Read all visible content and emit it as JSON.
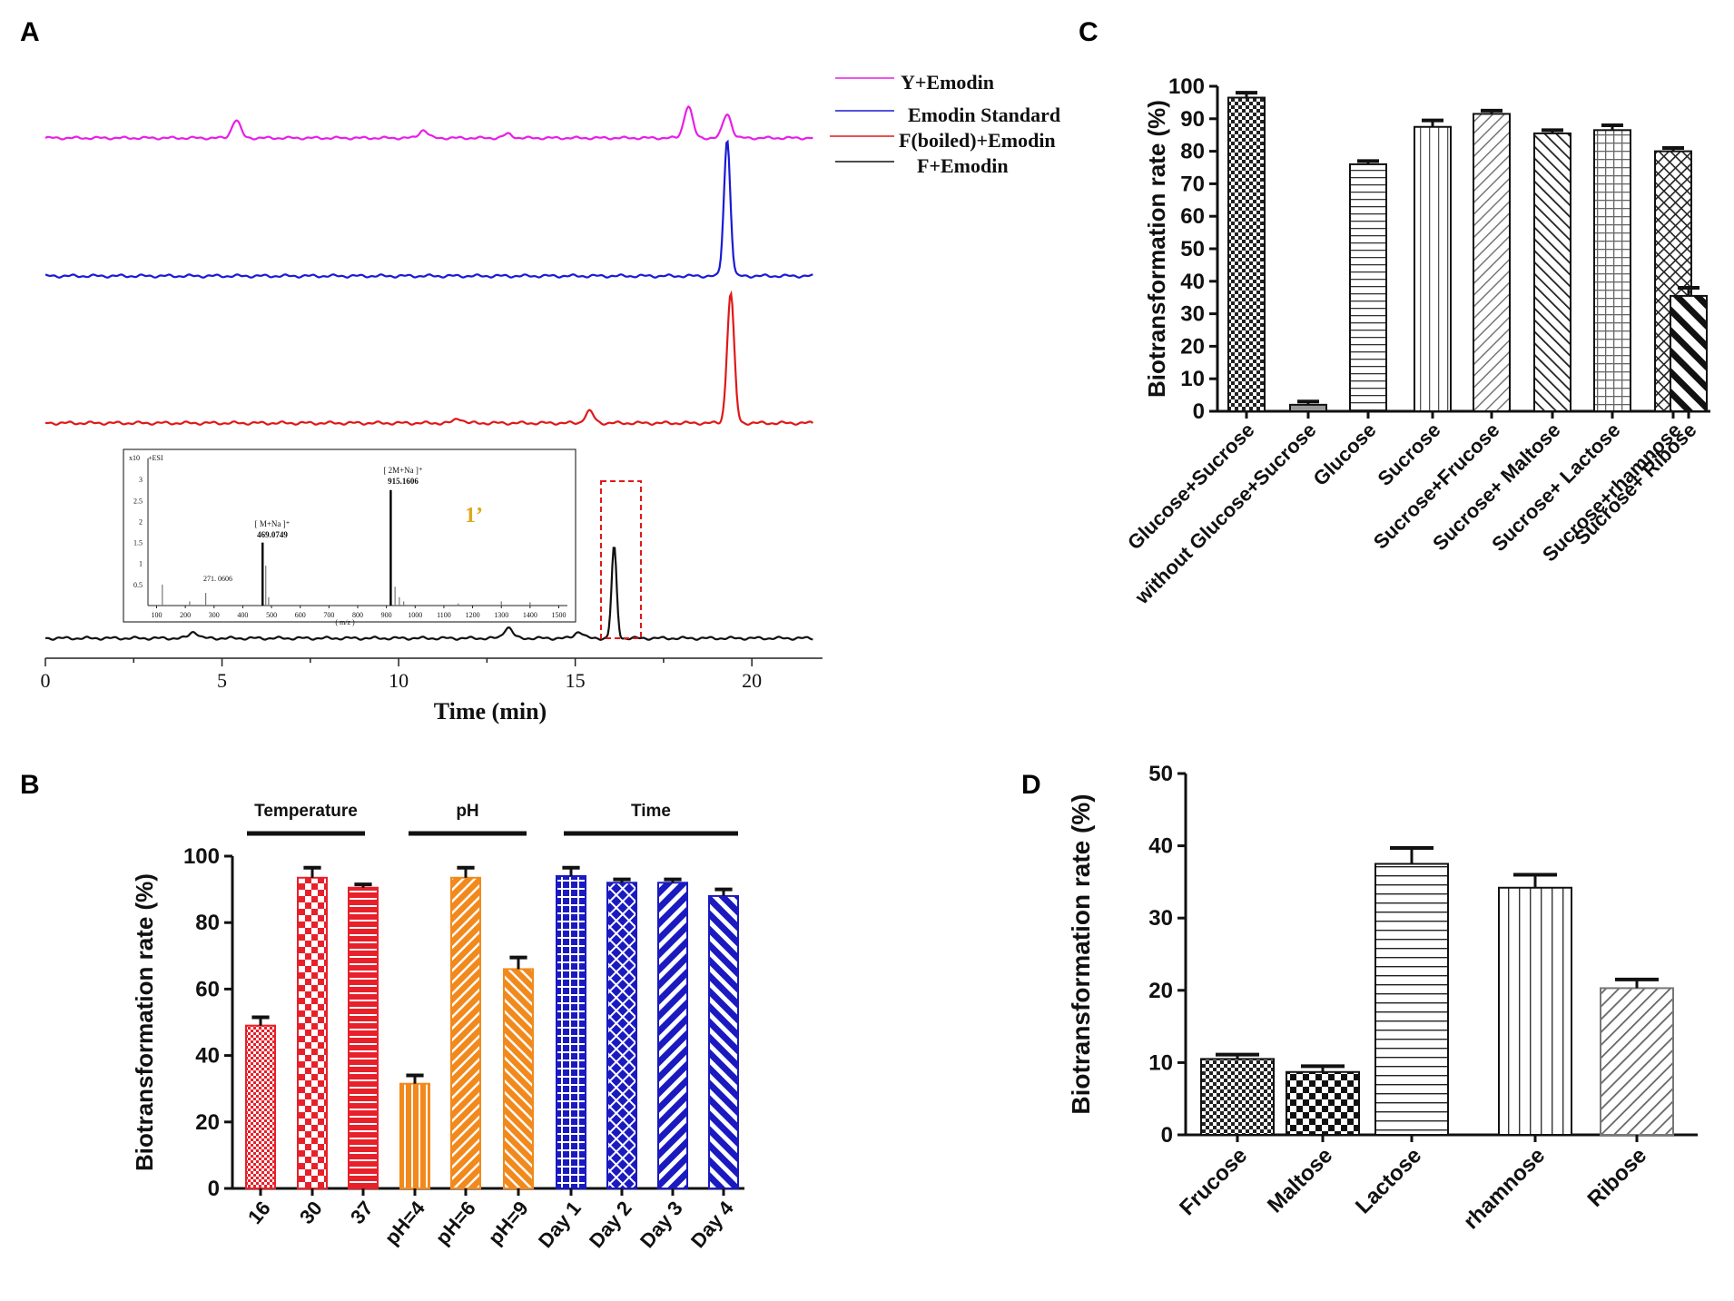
{
  "panels": {
    "A": "A",
    "B": "B",
    "C": "C",
    "D": "D"
  },
  "chart_data": [
    {
      "id": "A",
      "type": "line",
      "xlabel": "Time (min)",
      "xlim": [
        0,
        22
      ],
      "xticks": [
        0,
        5,
        10,
        15,
        20
      ],
      "legend": [
        "Y+Emodin",
        "Emodin Standard",
        "F(boiled)+Emodin",
        "F+Emodin"
      ],
      "colors": {
        "Y+Emodin": "#e81ee8",
        "Emodin Standard": "#1a1ad6",
        "F(boiled)+Emodin": "#e01818",
        "F+Emodin": "#111111"
      },
      "series": [
        {
          "name": "Y+Emodin",
          "peaks": [
            [
              5.4,
              0.9
            ],
            [
              10.7,
              0.4
            ],
            [
              13.1,
              0.2
            ],
            [
              18.2,
              1.6
            ],
            [
              19.3,
              1.2
            ]
          ]
        },
        {
          "name": "Emodin Standard",
          "peaks": [
            [
              19.3,
              6.0
            ]
          ]
        },
        {
          "name": "F(boiled)+Emodin",
          "peaks": [
            [
              11.7,
              0.2
            ],
            [
              15.4,
              0.5
            ],
            [
              19.4,
              5.5
            ]
          ]
        },
        {
          "name": "F+Emodin",
          "peaks": [
            [
              4.2,
              0.3
            ],
            [
              13.1,
              0.5
            ],
            [
              15.1,
              0.3
            ],
            [
              16.1,
              4.2
            ]
          ]
        }
      ],
      "inset": {
        "type": "bar",
        "label": "1’",
        "ylabel": "x10",
        "mode": "+ESI",
        "xlabel": "( m/z )",
        "xticks": [
          100,
          200,
          300,
          400,
          500,
          600,
          700,
          800,
          900,
          1000,
          1100,
          1200,
          1300,
          1400,
          1500
        ],
        "yticks": [
          0.5,
          1,
          1.5,
          2,
          2.5,
          3
        ],
        "annotations": [
          {
            "mz": 271.0606,
            "text": "271. 0606"
          },
          {
            "mz": 469.0749,
            "text": "[ M+Na ]⁺",
            "value": "469.0749"
          },
          {
            "mz": 915.1606,
            "text": "[ 2M+Na ]⁺",
            "value": "915.1606"
          }
        ],
        "peaks": [
          [
            120,
            0.5
          ],
          [
            215,
            0.1
          ],
          [
            271,
            0.3
          ],
          [
            469,
            1.5
          ],
          [
            480,
            0.95
          ],
          [
            490,
            0.2
          ],
          [
            915,
            2.75
          ],
          [
            930,
            0.45
          ],
          [
            945,
            0.2
          ],
          [
            960,
            0.1
          ],
          [
            1150,
            0.05
          ],
          [
            1300,
            0.1
          ],
          [
            1400,
            0.08
          ]
        ]
      }
    },
    {
      "id": "B",
      "type": "bar",
      "ylabel": "Biotransformation rate (%)",
      "ylim": [
        0,
        100
      ],
      "yticks": [
        0,
        20,
        40,
        60,
        80,
        100
      ],
      "groups": [
        "Temperature",
        "pH",
        "Time"
      ],
      "categories": [
        "16",
        "30",
        "37",
        "pH=4",
        "pH=6",
        "pH=9",
        "Day 1",
        "Day 2",
        "Day 3",
        "Day 4"
      ],
      "values": [
        49,
        93.5,
        90.5,
        31.5,
        93.5,
        66,
        94,
        92,
        92,
        88
      ],
      "errors": [
        2.5,
        3,
        1,
        2.5,
        3,
        3.5,
        2.5,
        1,
        1,
        2
      ],
      "colors": [
        "#e8202a",
        "#e8202a",
        "#e8202a",
        "#f2891c",
        "#f2891c",
        "#f2891c",
        "#1a1ac0",
        "#1a1ac0",
        "#1a1ac0",
        "#1a1ac0"
      ]
    },
    {
      "id": "C",
      "type": "bar",
      "ylabel": "Biotransformation rate (%)",
      "ylim": [
        0,
        100
      ],
      "yticks": [
        0,
        10,
        20,
        30,
        40,
        50,
        60,
        70,
        80,
        90,
        100
      ],
      "categories": [
        "Glucose+Sucrose",
        "without Glucose+Sucrose",
        "Glucose",
        "Sucrose",
        "Sucrose+Frucose",
        "Sucrose+ Maltose",
        "Sucrose+ Lactose",
        "Sucrose+rhamnose",
        "Sucrose+ Ribose"
      ],
      "values": [
        96.5,
        2,
        76,
        87.5,
        91.5,
        85.5,
        86.5,
        80,
        35.5
      ],
      "errors": [
        1.5,
        1,
        1,
        2,
        1,
        1,
        1.5,
        1,
        2.5
      ]
    },
    {
      "id": "D",
      "type": "bar",
      "ylabel": "Biotransformation rate (%)",
      "ylim": [
        0,
        50
      ],
      "yticks": [
        0,
        10,
        20,
        30,
        40,
        50
      ],
      "categories": [
        "Frucose",
        "Maltose",
        "Lactose",
        "rhamnose",
        "Ribose"
      ],
      "values": [
        10.5,
        8.7,
        37.5,
        34.2,
        20.3
      ],
      "errors": [
        0.6,
        0.8,
        2.2,
        1.8,
        1.2
      ]
    }
  ]
}
